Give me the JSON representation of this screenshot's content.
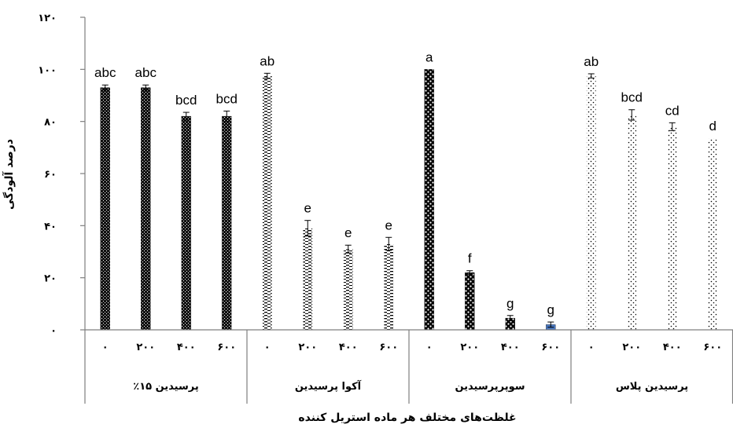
{
  "chart_data": {
    "type": "bar",
    "xlabel": "غلظت‌های مختلف هر ماده استریل کننده",
    "ylabel": "درصد آلودگی",
    "ylim": [
      0,
      120
    ],
    "y_ticks": [
      "۰",
      "۲۰",
      "۴۰",
      "۶۰",
      "۸۰",
      "۱۰۰",
      "۱۲۰"
    ],
    "grid": false,
    "groups": [
      {
        "name": "پرسیدین ۱۵٪",
        "fill": "dense-black-dots",
        "bars": [
          {
            "label": "۰",
            "value": 93,
            "error": 1,
            "sig": "abc"
          },
          {
            "label": "۲۰۰",
            "value": 93,
            "error": 1,
            "sig": "abc"
          },
          {
            "label": "۴۰۰",
            "value": 82,
            "error": 1.5,
            "sig": "bcd"
          },
          {
            "label": "۶۰۰",
            "value": 82,
            "error": 2,
            "sig": "bcd"
          }
        ]
      },
      {
        "name": "آکوا پرسیدین",
        "fill": "dashed-horizontal",
        "bars": [
          {
            "label": "۰",
            "value": 97.5,
            "error": 1,
            "sig": "ab"
          },
          {
            "label": "۲۰۰",
            "value": 39,
            "error": 3,
            "sig": "e"
          },
          {
            "label": "۴۰۰",
            "value": 31,
            "error": 1.5,
            "sig": "e"
          },
          {
            "label": "۶۰۰",
            "value": 33,
            "error": 2.5,
            "sig": "e"
          }
        ]
      },
      {
        "name": "سوپرپرسیدین",
        "fill": "checker",
        "bars": [
          {
            "label": "۰",
            "value": 100,
            "error": 0,
            "sig": "a"
          },
          {
            "label": "۲۰۰",
            "value": 22,
            "error": 0.7,
            "sig": "f"
          },
          {
            "label": "۴۰۰",
            "value": 4.5,
            "error": 1,
            "sig": "g"
          },
          {
            "label": "۶۰۰",
            "value": 2,
            "error": 1,
            "sig": "g"
          }
        ]
      },
      {
        "name": "پرسیدین پلاس",
        "fill": "sparse-dots",
        "bars": [
          {
            "label": "۰",
            "value": 97.5,
            "error": 0.8,
            "sig": "ab"
          },
          {
            "label": "۲۰۰",
            "value": 82.5,
            "error": 2,
            "sig": "bcd"
          },
          {
            "label": "۴۰۰",
            "value": 78,
            "error": 1.5,
            "sig": "cd"
          },
          {
            "label": "۶۰۰",
            "value": 73.5,
            "error": 0,
            "sig": "d"
          }
        ]
      }
    ]
  },
  "colors": {
    "axis": "#7f7f7f",
    "bar_dark": "#000000",
    "small_bar_blue": "#4a78c0"
  }
}
